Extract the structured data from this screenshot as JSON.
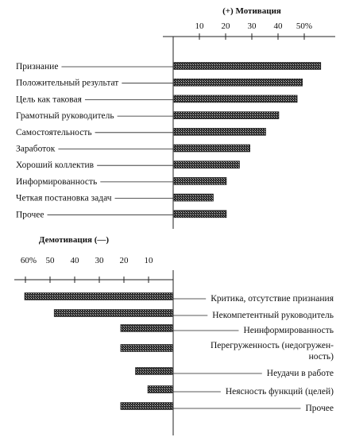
{
  "chart_data": [
    {
      "type": "bar",
      "orientation": "horizontal",
      "title": "(+) Мотивация",
      "x_tick_labels": [
        "10",
        "20",
        "30",
        "40",
        "50%"
      ],
      "x_ticks": [
        10,
        20,
        30,
        40,
        50
      ],
      "xlim": [
        0,
        55
      ],
      "categories": [
        "Признание",
        "Положительный результат",
        "Цель как таковая",
        "Грамотный руководитель",
        "Самостоятельность",
        "Заработок",
        "Хороший коллектив",
        "Информированность",
        "Четкая постановка задач",
        "Прочее"
      ],
      "values": [
        56,
        49,
        47,
        40,
        35,
        29,
        25,
        20,
        15,
        20
      ]
    },
    {
      "type": "bar",
      "orientation": "horizontal",
      "direction": "leftward",
      "title": "Демотивация (—)",
      "x_tick_labels": [
        "60%",
        "50",
        "40",
        "30",
        "20",
        "10"
      ],
      "x_ticks": [
        60,
        50,
        40,
        30,
        20,
        10
      ],
      "xlim": [
        0,
        60
      ],
      "categories": [
        "Критика, отсутствие признания",
        "Некомпетентный руководитель",
        "Неинформированность",
        "Перегруженность (недогружен-ность)",
        "Неудачи в работе",
        "Неясность функций (целей)",
        "Прочее"
      ],
      "category_lines": [
        [
          "Критика, отсутствие признания"
        ],
        [
          "Некомпетентный руководитель"
        ],
        [
          "Неинформированность"
        ],
        [
          "Перегруженность (недогружен-",
          "ность)"
        ],
        [
          "Неудачи в работе"
        ],
        [
          "Неясность функций (целей)"
        ],
        [
          "Прочее"
        ]
      ],
      "values": [
        60,
        48,
        21,
        21,
        15,
        10,
        21
      ]
    }
  ]
}
